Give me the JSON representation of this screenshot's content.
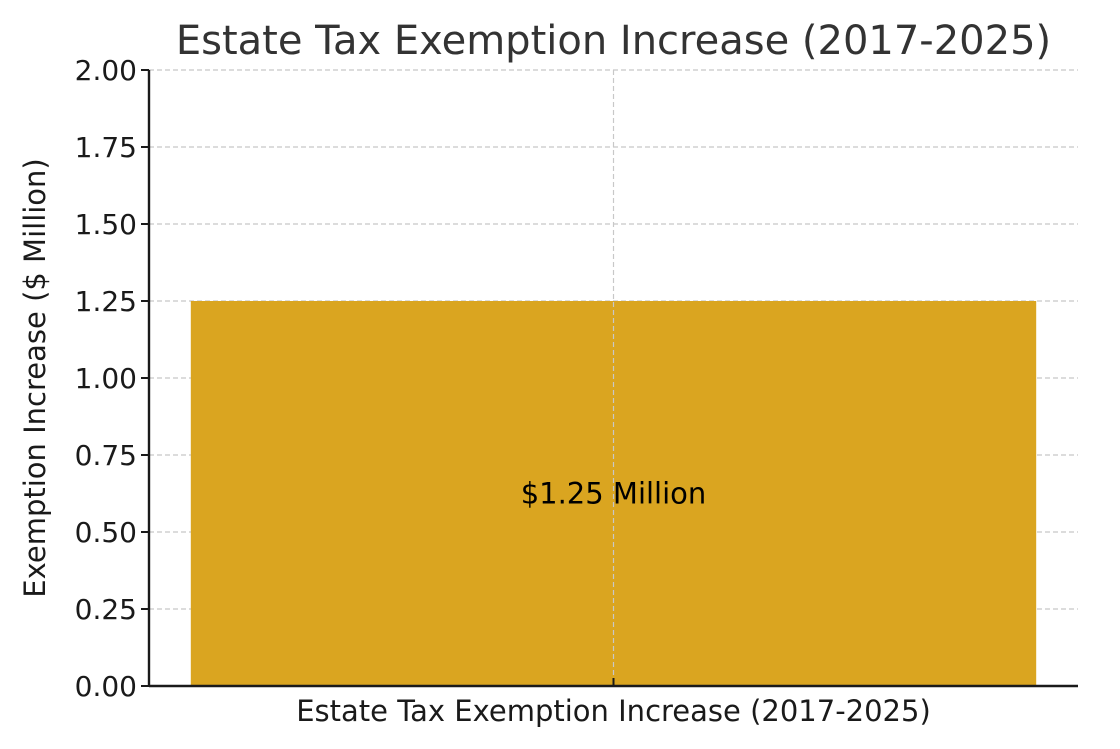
{
  "chart_data": {
    "type": "bar",
    "title": "Estate Tax Exemption Increase (2017-2025)",
    "xlabel": "",
    "ylabel": "Exemption Increase ($ Million)",
    "categories": [
      "Estate Tax Exemption Increase (2017-2025)"
    ],
    "values": [
      1.25
    ],
    "data_labels": [
      "$1.25 Million"
    ],
    "ylim": [
      0,
      2.0
    ],
    "yticks": [
      "0.00",
      "0.25",
      "0.50",
      "0.75",
      "1.00",
      "1.25",
      "1.50",
      "1.75",
      "2.00"
    ],
    "grid": true,
    "bar_color": "#DAA520"
  }
}
